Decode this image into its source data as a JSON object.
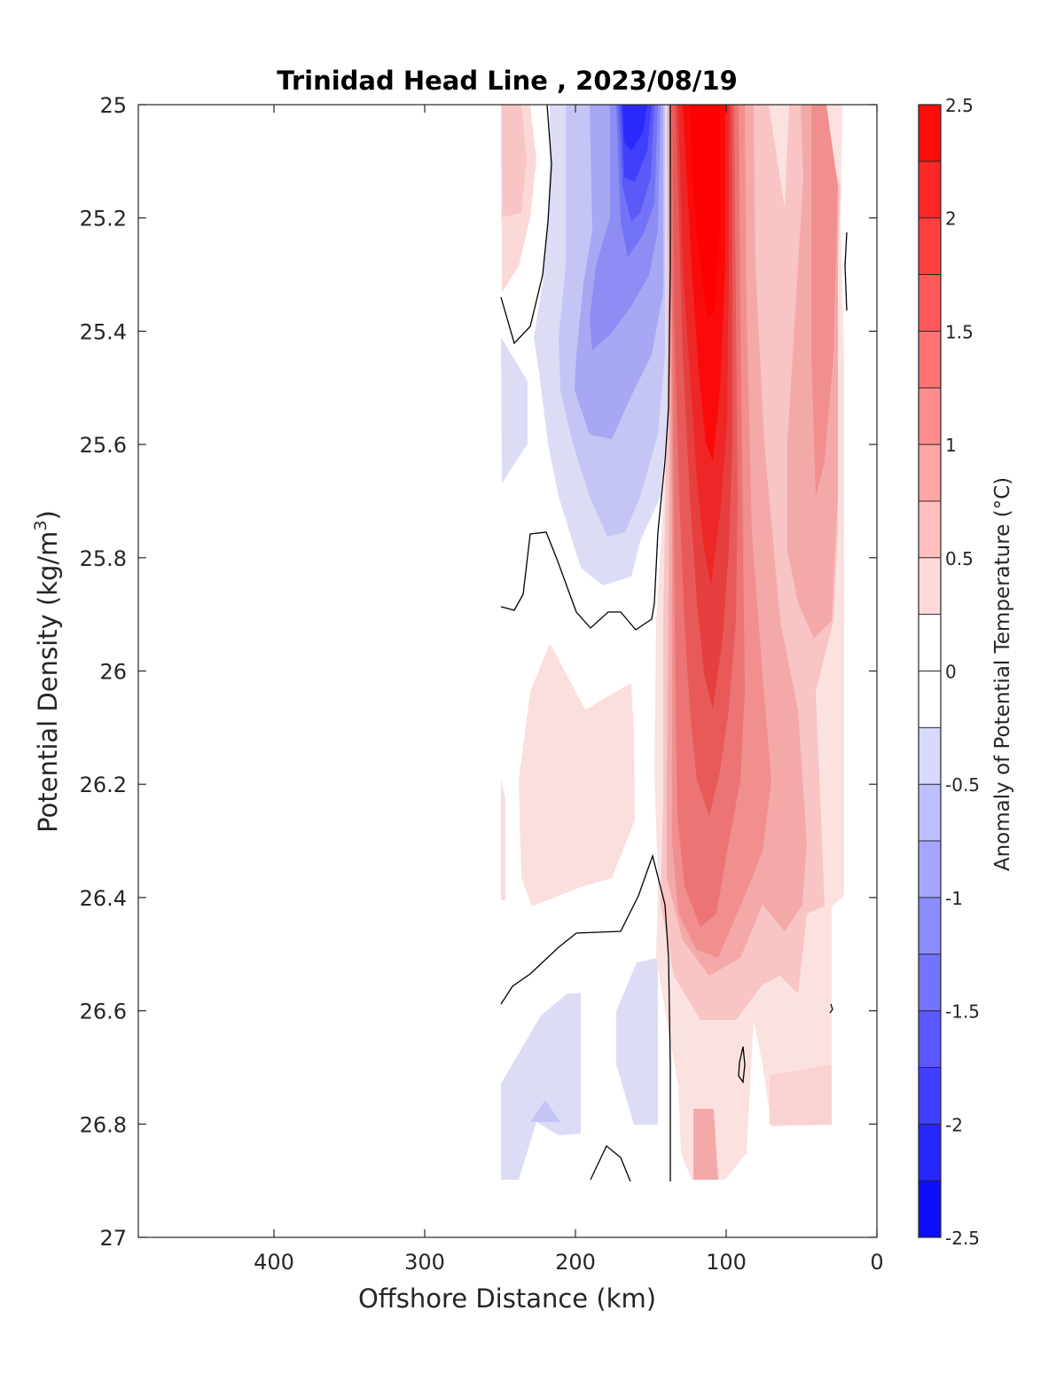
{
  "chart_data": {
    "type": "contour",
    "title": "Trinidad Head Line , 2023/08/19",
    "xlabel": "Offshore Distance (km)",
    "ylabel_main": "Potential Density (kg/m",
    "ylabel_sup": "3",
    "ylabel_close": ")",
    "colorbar_label": "Anomaly of Potential Temperature (°C)",
    "xlim": [
      490,
      0
    ],
    "ylim": [
      27,
      25
    ],
    "x_reversed": true,
    "y_reversed": true,
    "x_ticks": [
      400,
      300,
      200,
      100,
      0
    ],
    "x_tick_labels": [
      "400",
      "300",
      "200",
      "100",
      "0"
    ],
    "y_ticks": [
      25,
      25.2,
      25.4,
      25.6,
      25.8,
      26,
      26.2,
      26.4,
      26.6,
      26.8,
      27
    ],
    "y_tick_labels": [
      "25",
      "25.2",
      "25.4",
      "25.6",
      "25.8",
      "26",
      "26.2",
      "26.4",
      "26.6",
      "26.8",
      "27"
    ],
    "colorbar_range": [
      -2.5,
      2.5
    ],
    "colorbar_levels": [
      -2.5,
      -2.25,
      -2,
      -1.75,
      -1.5,
      -1.25,
      -1,
      -0.75,
      -0.5,
      -0.25,
      0,
      0.25,
      0.5,
      0.75,
      1,
      1.25,
      1.5,
      1.75,
      2,
      2.25,
      2.5
    ],
    "colorbar_ticks": [
      2.5,
      2,
      1.5,
      1,
      0.5,
      0,
      -0.5,
      -1,
      -1.5,
      -2,
      -2.5
    ],
    "colorbar_tick_labels": [
      "2.5",
      "2",
      "1.5",
      "1",
      "0.5",
      "0",
      "-0.5",
      "-1",
      "-1.5",
      "-2",
      "-2.5"
    ],
    "grid": false,
    "features": [
      {
        "kind": "warm-core",
        "x_center_km": 110,
        "x_range_km": [
          95,
          135
        ],
        "y_range": [
          25,
          26.55
        ],
        "max_anomaly": 2.5
      },
      {
        "kind": "cold-core",
        "x_center_km": 162,
        "x_range_km": [
          140,
          185
        ],
        "y_range": [
          25,
          25.85
        ],
        "min_anomaly": -2.25
      },
      {
        "kind": "warm-band",
        "x_range_km": [
          20,
          100
        ],
        "y_range": [
          25,
          26.9
        ],
        "anomaly": 0.75
      },
      {
        "kind": "weak-warm",
        "x_range_km": [
          160,
          235
        ],
        "y_range": [
          25.95,
          26.45
        ],
        "anomaly": 0.25
      },
      {
        "kind": "weak-cold",
        "x_range_km": [
          145,
          250
        ],
        "y_range": [
          26.55,
          26.9
        ],
        "anomaly": -0.25
      },
      {
        "kind": "weak-warm",
        "x_range_km": [
          220,
          250
        ],
        "y_range": [
          25,
          25.32
        ],
        "anomaly": 0.5
      }
    ],
    "data_x_range_km": [
      20,
      250
    ],
    "data_y_range": [
      25,
      26.9
    ]
  }
}
